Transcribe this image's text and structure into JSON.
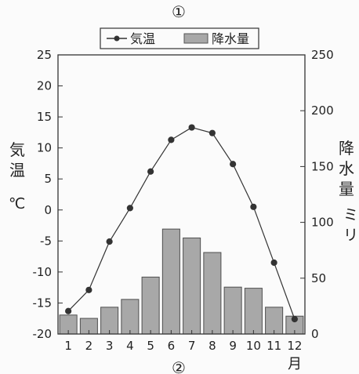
{
  "chart_data": {
    "type": "bar+line",
    "top_label": "①",
    "bottom_label": "②",
    "categories": [
      "1",
      "2",
      "3",
      "4",
      "5",
      "6",
      "7",
      "8",
      "9",
      "10",
      "11",
      "12"
    ],
    "x_unit": "月",
    "left_axis": {
      "label": "気温",
      "unit": "℃",
      "range": [
        -20,
        25
      ],
      "ticks": [
        -20,
        -15,
        -10,
        -5,
        0,
        5,
        10,
        15,
        20,
        25
      ]
    },
    "right_axis": {
      "label": "降水量",
      "unit": "ミリ",
      "range": [
        0,
        250
      ],
      "ticks": [
        0,
        50,
        100,
        150,
        200,
        250
      ]
    },
    "series": [
      {
        "name": "気温",
        "type": "line",
        "axis": "left",
        "values": [
          -16.3,
          -12.9,
          -5.1,
          0.3,
          6.2,
          11.3,
          13.3,
          12.4,
          7.4,
          0.5,
          -8.5,
          -17.6
        ],
        "color": "#333333"
      },
      {
        "name": "降水量",
        "type": "bar",
        "axis": "right",
        "values": [
          17,
          14,
          24,
          31,
          51,
          94,
          86,
          73,
          42,
          41,
          24,
          16
        ],
        "color": "#a8a8a8"
      }
    ],
    "legend": {
      "position": "top",
      "items": [
        "気温",
        "降水量"
      ]
    },
    "grid": false
  }
}
